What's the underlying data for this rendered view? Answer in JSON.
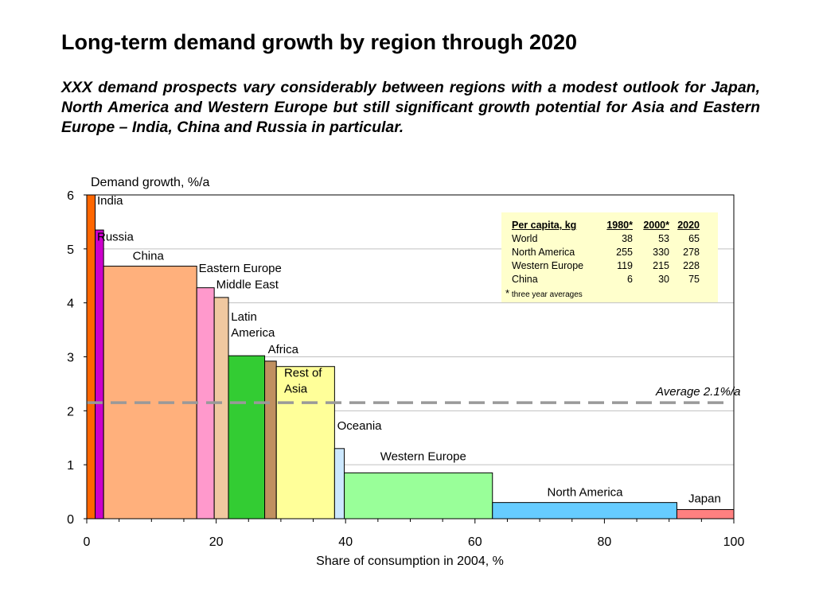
{
  "slide": {
    "title": "Long-term demand growth by region through 2020",
    "subtitle": "XXX demand prospects vary considerably between regions with a modest outlook for Japan, North America and Western Europe but still significant growth potential for Asia and Eastern Europe – India, China and Russia in particular."
  },
  "chart_data": {
    "type": "bar",
    "ylabel": "Demand growth, %/a",
    "xlabel": "Share of consumption in 2004, %",
    "xlim": [
      0,
      100
    ],
    "ylim": [
      0,
      6
    ],
    "xticks": [
      0,
      20,
      40,
      60,
      80,
      100
    ],
    "yticks": [
      0,
      1,
      2,
      3,
      4,
      5,
      6
    ],
    "grid": true,
    "bars": [
      {
        "name": "India",
        "x0": 0,
        "x1": 1.3,
        "value": 6.0,
        "color": "#ff6600"
      },
      {
        "name": "Russia",
        "x0": 1.3,
        "x1": 2.6,
        "value": 5.35,
        "color": "#cc00cc"
      },
      {
        "name": "China",
        "x0": 2.6,
        "x1": 17.0,
        "value": 4.68,
        "color": "#ffb07c"
      },
      {
        "name": "Eastern Europe",
        "x0": 17.0,
        "x1": 19.7,
        "value": 4.28,
        "color": "#ff99cc"
      },
      {
        "name": "Middle East",
        "x0": 19.7,
        "x1": 21.9,
        "value": 4.1,
        "color": "#f0c8a0"
      },
      {
        "name": "Latin America",
        "x0": 21.9,
        "x1": 27.5,
        "value": 3.02,
        "color": "#33cc33"
      },
      {
        "name": "Africa",
        "x0": 27.5,
        "x1": 29.3,
        "value": 2.92,
        "color": "#c09060"
      },
      {
        "name": "Rest of Asia",
        "x0": 29.3,
        "x1": 38.3,
        "value": 2.82,
        "color": "#ffff99"
      },
      {
        "name": "Oceania",
        "x0": 38.3,
        "x1": 39.8,
        "value": 1.3,
        "color": "#cce8ff"
      },
      {
        "name": "Western Europe",
        "x0": 39.8,
        "x1": 62.7,
        "value": 0.85,
        "color": "#99ff99"
      },
      {
        "name": "North America",
        "x0": 62.7,
        "x1": 91.2,
        "value": 0.3,
        "color": "#66ccff"
      },
      {
        "name": "Japan",
        "x0": 91.2,
        "x1": 100,
        "value": 0.17,
        "color": "#ff8080"
      }
    ],
    "labels": [
      {
        "lines": [
          "India"
        ],
        "x": 1.6,
        "y": 5.82,
        "anchor": "start"
      },
      {
        "lines": [
          "Russia"
        ],
        "x": 1.6,
        "y": 5.15,
        "anchor": "start"
      },
      {
        "lines": [
          "China"
        ],
        "x": 9.5,
        "y": 4.8,
        "anchor": "middle"
      },
      {
        "lines": [
          "Eastern Europe"
        ],
        "x": 17.3,
        "y": 4.57,
        "anchor": "start"
      },
      {
        "lines": [
          "Middle East"
        ],
        "x": 20.0,
        "y": 4.27,
        "anchor": "start"
      },
      {
        "lines": [
          "Latin",
          "America"
        ],
        "x": 22.3,
        "y": 3.67,
        "anchor": "start"
      },
      {
        "lines": [
          "Africa"
        ],
        "x": 28.0,
        "y": 3.07,
        "anchor": "start"
      },
      {
        "lines": [
          "Rest of",
          "Asia"
        ],
        "x": 30.5,
        "y": 2.63,
        "anchor": "start"
      },
      {
        "lines": [
          "Oceania"
        ],
        "x": 38.7,
        "y": 1.65,
        "anchor": "start"
      },
      {
        "lines": [
          "Western Europe"
        ],
        "x": 52.0,
        "y": 1.08,
        "anchor": "middle"
      },
      {
        "lines": [
          "North America"
        ],
        "x": 77.0,
        "y": 0.42,
        "anchor": "middle"
      },
      {
        "lines": [
          "Japan"
        ],
        "x": 95.5,
        "y": 0.3,
        "anchor": "middle"
      }
    ],
    "average": {
      "value": 2.15,
      "label": "Average 2.1%/a",
      "color": "#999999"
    }
  },
  "info_box": {
    "header": [
      "Per capita, kg",
      "1980*",
      "2000*",
      "2020"
    ],
    "rows": [
      [
        "World",
        "38",
        "53",
        "65"
      ],
      [
        "North America",
        "255",
        "330",
        "278"
      ],
      [
        "Western Europe",
        "119",
        "215",
        "228"
      ],
      [
        "China",
        "6",
        "30",
        "75"
      ]
    ],
    "footnote_mark": "*",
    "footnote": "three year averages"
  }
}
